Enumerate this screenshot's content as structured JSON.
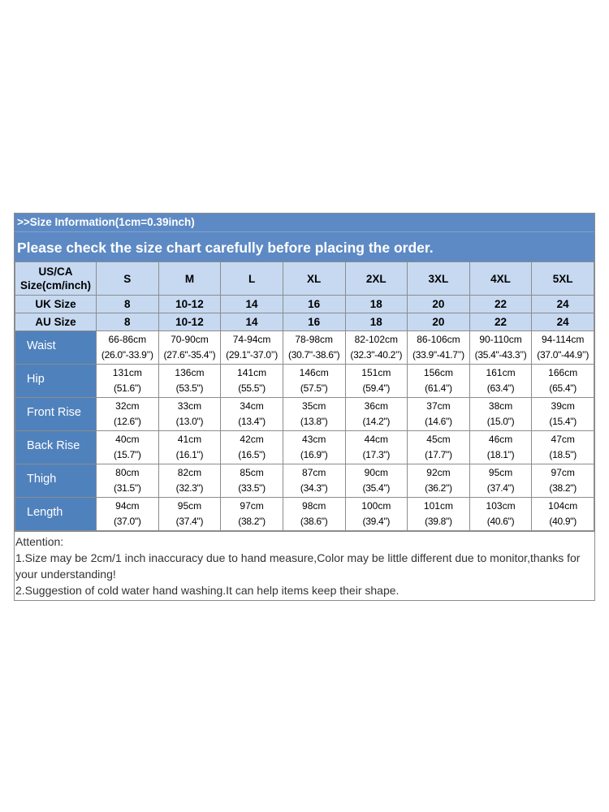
{
  "header": {
    "info": ">>Size Information(1cm=0.39inch)",
    "notice": "Please check the size chart carefully before placing the order."
  },
  "size_row": {
    "label_line1": "US/CA",
    "label_line2": "Size(cm/inch)",
    "values": [
      "S",
      "M",
      "L",
      "XL",
      "2XL",
      "3XL",
      "4XL",
      "5XL"
    ]
  },
  "uk_row": {
    "label": "UK Size",
    "values": [
      "8",
      "10-12",
      "14",
      "16",
      "18",
      "20",
      "22",
      "24"
    ]
  },
  "au_row": {
    "label": "AU Size",
    "values": [
      "8",
      "10-12",
      "14",
      "16",
      "18",
      "20",
      "22",
      "24"
    ]
  },
  "measurements": [
    {
      "label": "Waist",
      "cells": [
        {
          "cm": "66-86cm",
          "in": "(26.0\"-33.9’’)"
        },
        {
          "cm": "70-90cm",
          "in": "(27.6\"-35.4’’)"
        },
        {
          "cm": "74-94cm",
          "in": "(29.1\"-37.0’’)"
        },
        {
          "cm": "78-98cm",
          "in": "(30.7\"-38.6\")"
        },
        {
          "cm": "82-102cm",
          "in": "(32.3\"-40.2’’)"
        },
        {
          "cm": "86-106cm",
          "in": "(33.9\"-41.7’’)"
        },
        {
          "cm": "90-110cm",
          "in": "(35.4\"-43.3’’)"
        },
        {
          "cm": "94-114cm",
          "in": "(37.0\"-44.9’’)"
        }
      ]
    },
    {
      "label": "Hip",
      "cells": [
        {
          "cm": "131cm",
          "in": "(51.6\")"
        },
        {
          "cm": "136cm",
          "in": "(53.5\")"
        },
        {
          "cm": "141cm",
          "in": "(55.5\")"
        },
        {
          "cm": "146cm",
          "in": "(57.5\")"
        },
        {
          "cm": "151cm",
          "in": "(59.4\")"
        },
        {
          "cm": "156cm",
          "in": "(61.4\")"
        },
        {
          "cm": "161cm",
          "in": "(63.4\")"
        },
        {
          "cm": "166cm",
          "in": "(65.4\")"
        }
      ]
    },
    {
      "label": "Front Rise",
      "cells": [
        {
          "cm": "32cm",
          "in": "(12.6\")"
        },
        {
          "cm": "33cm",
          "in": "(13.0\")"
        },
        {
          "cm": "34cm",
          "in": "(13.4\")"
        },
        {
          "cm": "35cm",
          "in": "(13.8\")"
        },
        {
          "cm": "36cm",
          "in": "(14.2\")"
        },
        {
          "cm": "37cm",
          "in": "(14.6\")"
        },
        {
          "cm": "38cm",
          "in": "(15.0\")"
        },
        {
          "cm": "39cm",
          "in": "(15.4\")"
        }
      ]
    },
    {
      "label": "Back Rise",
      "cells": [
        {
          "cm": "40cm",
          "in": "(15.7\")"
        },
        {
          "cm": "41cm",
          "in": "(16.1\")"
        },
        {
          "cm": "42cm",
          "in": "(16.5\")"
        },
        {
          "cm": "43cm",
          "in": "(16.9\")"
        },
        {
          "cm": "44cm",
          "in": "(17.3\")"
        },
        {
          "cm": "45cm",
          "in": "(17.7\")"
        },
        {
          "cm": "46cm",
          "in": "(18.1\")"
        },
        {
          "cm": "47cm",
          "in": "(18.5\")"
        }
      ]
    },
    {
      "label": "Thigh",
      "cells": [
        {
          "cm": "80cm",
          "in": "(31.5\")"
        },
        {
          "cm": "82cm",
          "in": "(32.3\")"
        },
        {
          "cm": "85cm",
          "in": "(33.5\")"
        },
        {
          "cm": "87cm",
          "in": "(34.3\")"
        },
        {
          "cm": "90cm",
          "in": "(35.4\")"
        },
        {
          "cm": "92cm",
          "in": "(36.2\")"
        },
        {
          "cm": "95cm",
          "in": "(37.4\")"
        },
        {
          "cm": "97cm",
          "in": "(38.2\")"
        }
      ]
    },
    {
      "label": "Length",
      "cells": [
        {
          "cm": "94cm",
          "in": "(37.0\")"
        },
        {
          "cm": "95cm",
          "in": "(37.4\")"
        },
        {
          "cm": "97cm",
          "in": "(38.2\")"
        },
        {
          "cm": "98cm",
          "in": "(38.6\")"
        },
        {
          "cm": "100cm",
          "in": "(39.4\")"
        },
        {
          "cm": "101cm",
          "in": "(39.8\")"
        },
        {
          "cm": "103cm",
          "in": "(40.6\")"
        },
        {
          "cm": "104cm",
          "in": "(40.9\")"
        }
      ]
    }
  ],
  "notes": {
    "title": "Attention:",
    "line1": "1.Size may be 2cm/1 inch inaccuracy due to hand measure,Color may be little different due to monitor,thanks for your understanding!",
    "line2": "2.Suggestion of cold water hand washing.It can help items keep their shape."
  },
  "colors": {
    "banner": "#5d8ac4",
    "header_cells": "#c6d9f1",
    "row_labels": "#4f81bd"
  }
}
